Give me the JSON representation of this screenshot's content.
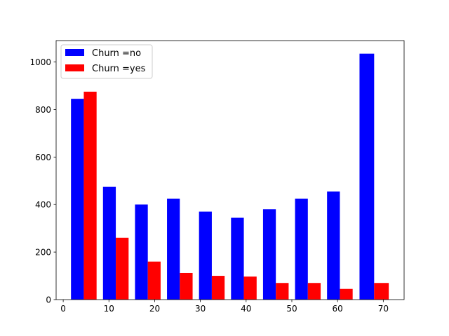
{
  "chart_data": {
    "type": "bar",
    "bin_edges": [
      1,
      8,
      15,
      22,
      29,
      36,
      43,
      50,
      57,
      64,
      72
    ],
    "xlim": [
      -1.55,
      74.55
    ],
    "ylim": [
      0,
      1090
    ],
    "x_ticks": [
      0,
      10,
      20,
      30,
      40,
      50,
      60,
      70
    ],
    "y_ticks": [
      0,
      200,
      400,
      600,
      800,
      1000
    ],
    "series": [
      {
        "name": "Churn =no",
        "color": "#0000ff",
        "values": [
          845,
          475,
          400,
          425,
          370,
          345,
          380,
          425,
          455,
          1035
        ]
      },
      {
        "name": "Churn =yes",
        "color": "#ff0000",
        "values": [
          875,
          260,
          160,
          112,
          100,
          97,
          70,
          70,
          45,
          70
        ]
      }
    ],
    "legend_position": "upper left",
    "title": "",
    "xlabel": "",
    "ylabel": ""
  }
}
